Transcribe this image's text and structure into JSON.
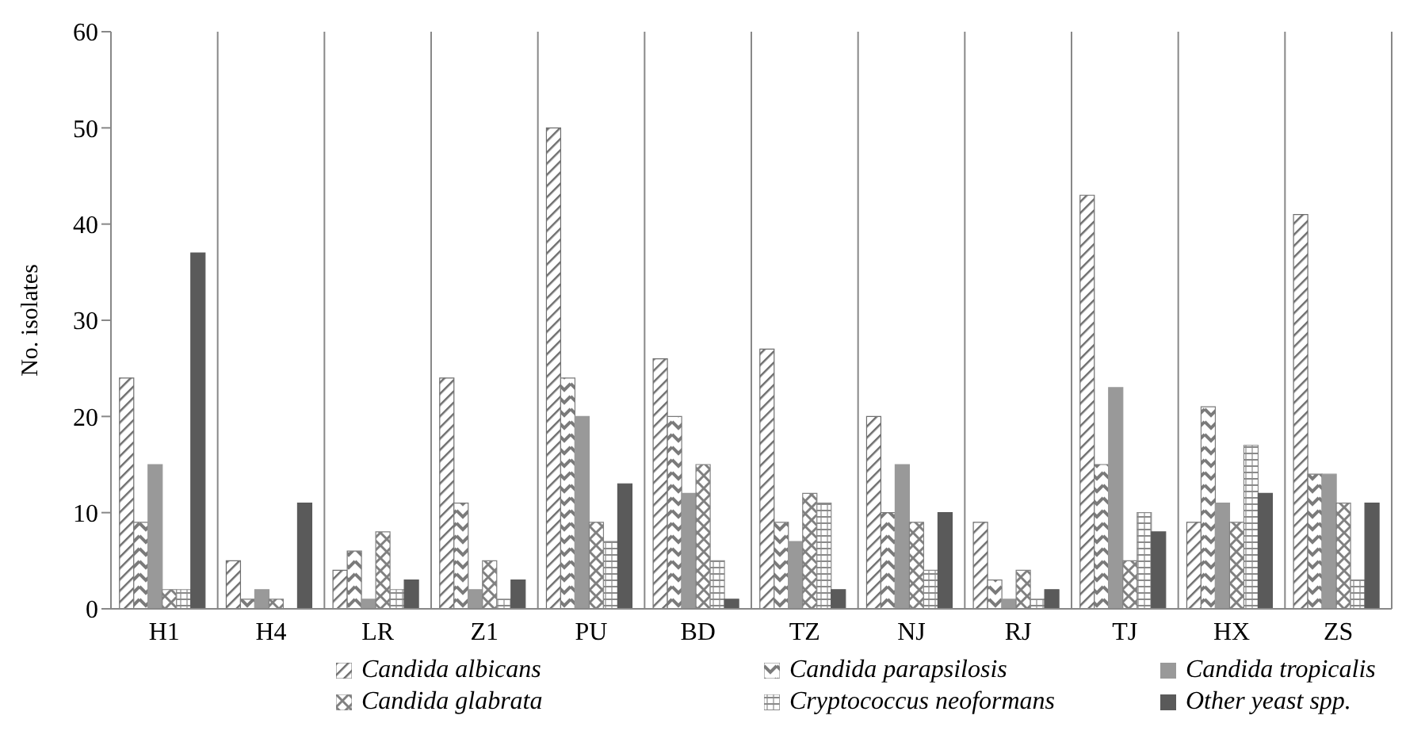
{
  "chart_data": {
    "type": "bar",
    "ylabel": "No. isolates",
    "categories": [
      "H1",
      "H4",
      "LR",
      "Z1",
      "PU",
      "BD",
      "TZ",
      "NJ",
      "RJ",
      "TJ",
      "HX",
      "ZS"
    ],
    "series": [
      {
        "name": "Candida albicans",
        "color": "#6e6e6e",
        "values": [
          24,
          5,
          4,
          24,
          50,
          26,
          27,
          20,
          9,
          43,
          9,
          41
        ]
      },
      {
        "name": "Candida parapsilosis",
        "color": "#7a7a7a",
        "values": [
          9,
          1,
          6,
          11,
          24,
          20,
          9,
          10,
          3,
          15,
          21,
          14
        ]
      },
      {
        "name": "Candida tropicalis",
        "color": "#999999",
        "values": [
          15,
          2,
          1,
          2,
          20,
          12,
          7,
          15,
          1,
          23,
          11,
          14
        ]
      },
      {
        "name": "Candida glabrata",
        "color": "#808080",
        "values": [
          2,
          1,
          8,
          5,
          9,
          15,
          12,
          9,
          4,
          5,
          9,
          11
        ]
      },
      {
        "name": "Cryptococcus neoformans",
        "color": "#8a8a8a",
        "values": [
          2,
          0,
          2,
          1,
          7,
          5,
          11,
          4,
          1,
          10,
          17,
          3
        ]
      },
      {
        "name": "Other yeast spp.",
        "color": "#5a5a5a",
        "values": [
          37,
          11,
          3,
          3,
          13,
          1,
          2,
          10,
          2,
          8,
          12,
          11
        ]
      }
    ],
    "ylim": [
      0,
      60
    ],
    "yticks": [
      0,
      10,
      20,
      30,
      40,
      50,
      60
    ],
    "grid": "x",
    "legend": "bottom"
  }
}
